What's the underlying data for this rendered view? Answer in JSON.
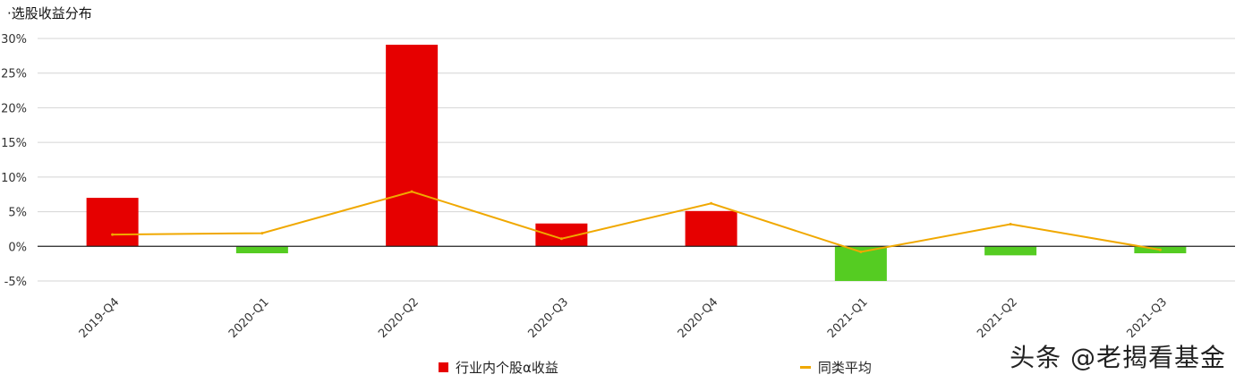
{
  "chart_data": {
    "type": "bar",
    "title": "·选股收益分布",
    "categories": [
      "2019-Q4",
      "2020-Q1",
      "2020-Q2",
      "2020-Q3",
      "2020-Q4",
      "2021-Q1",
      "2021-Q2",
      "2021-Q3"
    ],
    "series": [
      {
        "name": "行业内个股α收益",
        "type": "bar",
        "values": [
          7.0,
          -1.0,
          29.1,
          3.3,
          5.1,
          -5.0,
          -1.3,
          -1.0
        ],
        "color_positive": "#e60000",
        "color_negative": "#55cc22"
      },
      {
        "name": "同类平均",
        "type": "line",
        "values": [
          1.7,
          1.9,
          7.9,
          1.1,
          6.2,
          -0.8,
          3.2,
          -0.5
        ],
        "color": "#f0a800"
      }
    ],
    "yticks": [
      "30%",
      "25%",
      "20%",
      "15%",
      "10%",
      "5%",
      "0%",
      "-5%"
    ],
    "ylim": [
      -5,
      30
    ],
    "grid": true,
    "legend_position": "bottom"
  },
  "watermark": "头条 @老揭看基金"
}
